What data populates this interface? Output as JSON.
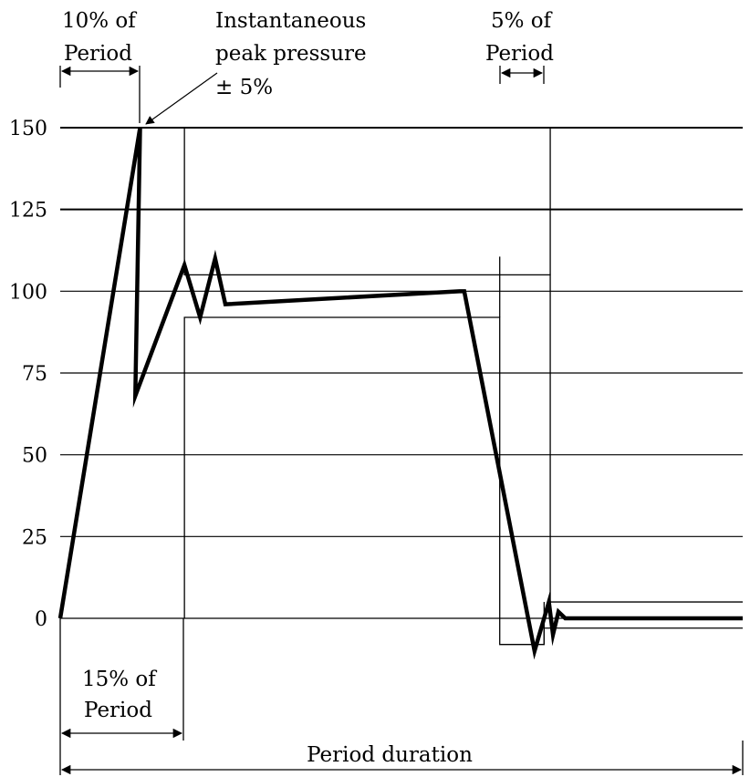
{
  "chart_data": {
    "type": "line",
    "title": "",
    "xlabel": "Period duration",
    "ylabel": "",
    "ylim": [
      0,
      150
    ],
    "yticks": [
      0,
      25,
      50,
      75,
      100,
      125,
      150
    ],
    "ytick_labels": [
      "0",
      "25",
      "50",
      "75",
      "100",
      "125",
      "150"
    ],
    "grid": true,
    "series": [
      {
        "values_x": [
          0,
          0.117,
          0.11,
          0.182,
          0.205,
          0.227,
          0.242,
          0.585,
          0.592,
          0.695,
          0.709,
          0.716,
          0.722,
          0.73,
          0.74,
          1.0
        ],
        "values_y": [
          0,
          150,
          68,
          108,
          92,
          110,
          96,
          100,
          100,
          -10,
          0,
          5,
          -5,
          2,
          0,
          0
        ]
      }
    ],
    "tolerance_band": {
      "upper": [
        {
          "x": [
            0.182,
            0.718
          ],
          "y": 105
        },
        {
          "x": [
            0.718,
            1.0
          ],
          "y": 5
        }
      ],
      "lower": [
        {
          "x": [
            0.182,
            0.644
          ],
          "y": 92
        },
        {
          "x": [
            0.644,
            0.709
          ],
          "y": -8
        },
        {
          "x": [
            0.709,
            1.0
          ],
          "y": -3
        }
      ]
    },
    "annotations": {
      "ten_pct": {
        "line1": "10% of",
        "line2": "Period"
      },
      "peak": {
        "line1": "Instantaneous",
        "line2": "peak pressure",
        "line3": "± 5%"
      },
      "five_pct": {
        "line1": "5% of",
        "line2": "Period"
      },
      "fifteen_pct": {
        "line1": "15% of",
        "line2": "Period"
      }
    }
  }
}
